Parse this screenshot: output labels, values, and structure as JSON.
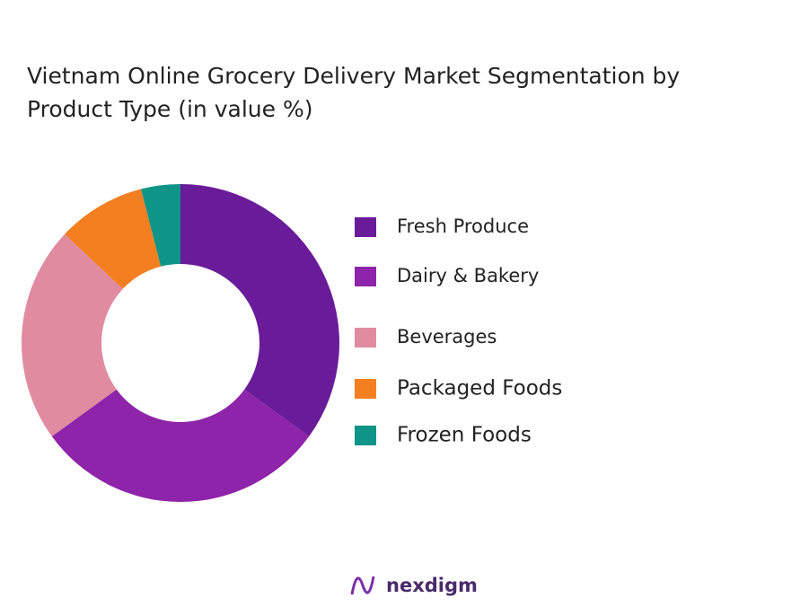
{
  "chart_data": {
    "type": "donut",
    "title": "Vietnam Online Grocery Delivery  Market Segmentation by Product Type  (in value %)",
    "categories": [
      "Fresh Produce",
      "Dairy & Bakery",
      "Beverages",
      "Packaged Foods",
      "Frozen Foods"
    ],
    "values": [
      35,
      30,
      22,
      9,
      4
    ],
    "colors": [
      "#6a1b9a",
      "#8e24aa",
      "#e08ba0",
      "#f47f20",
      "#0f9488"
    ],
    "legend": "right"
  },
  "logo": "nexdigm"
}
